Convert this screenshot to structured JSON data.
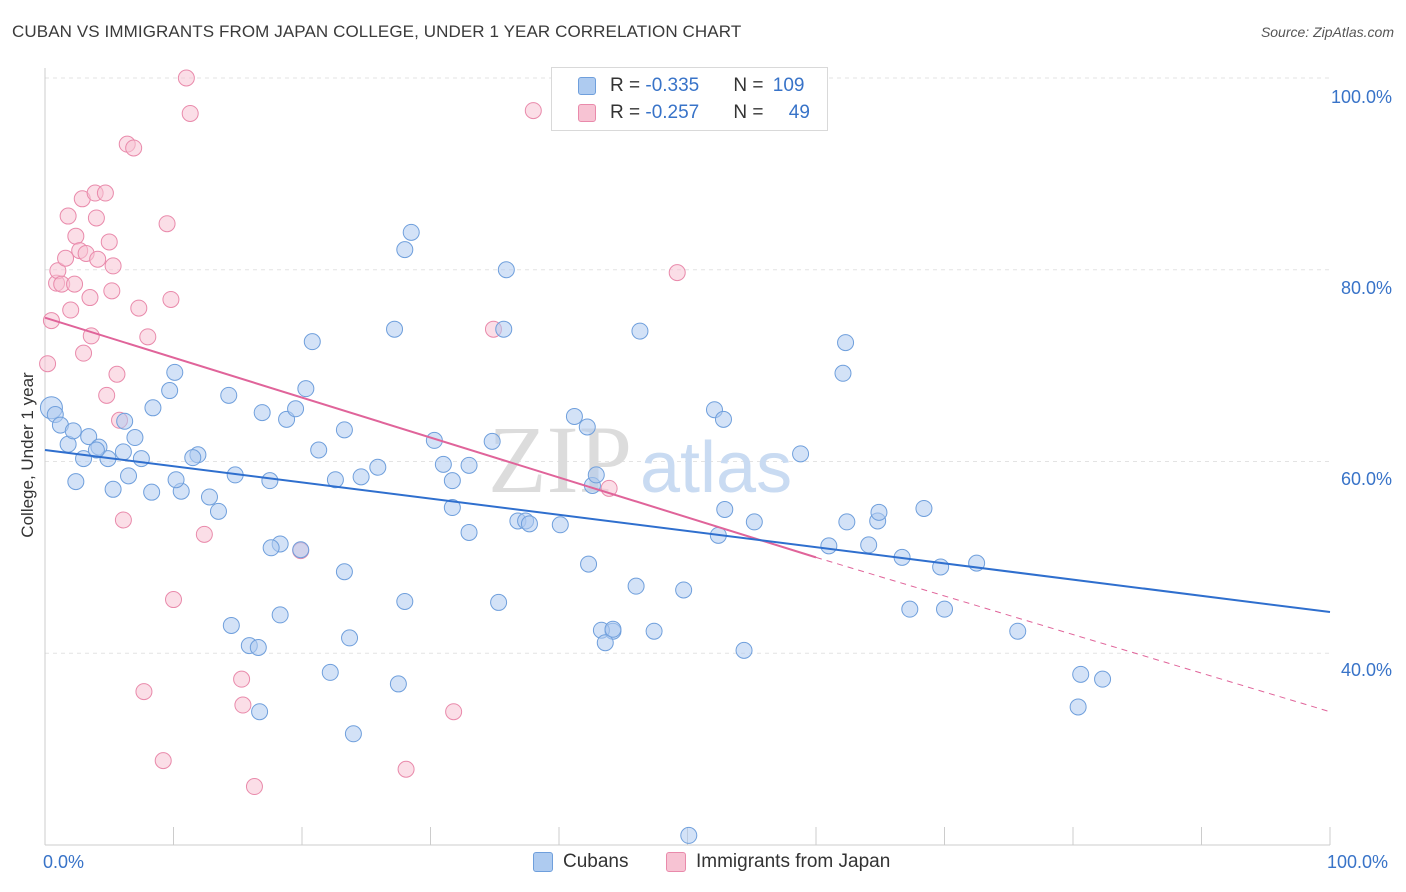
{
  "title": "CUBAN VS IMMIGRANTS FROM JAPAN COLLEGE, UNDER 1 YEAR CORRELATION CHART",
  "source": "Source: ZipAtlas.com",
  "watermark": {
    "zip": "ZIP",
    "atlas": "atlas"
  },
  "legend": {
    "rows": [
      {
        "r_label": "R = ",
        "r_value": "-0.335",
        "n_label": "N = ",
        "n_value": "109"
      },
      {
        "r_label": "R = ",
        "r_value": "-0.257",
        "n_label": "N = ",
        "n_value": "49"
      }
    ]
  },
  "bottom_legend": {
    "cubans": "Cubans",
    "japan": "Immigrants from Japan"
  },
  "axes": {
    "ylabel": "College, Under 1 year",
    "x_ticks": [
      "0.0%",
      "100.0%"
    ],
    "y_ticks": [
      "100.0%",
      "80.0%",
      "60.0%",
      "40.0%"
    ]
  },
  "colors": {
    "cubans_fill": "#aecbf0",
    "cubans_stroke": "#6f9fdc",
    "cubans_line": "#2f6fce",
    "japan_fill": "#f7c3d3",
    "japan_stroke": "#e98aab",
    "japan_line": "#e0649a",
    "tick_text": "#3873c8",
    "grid": "#e3e3e3"
  },
  "chart_data": {
    "type": "scatter",
    "title": "CUBAN VS IMMIGRANTS FROM JAPAN COLLEGE, UNDER 1 YEAR CORRELATION CHART",
    "xlabel": "",
    "ylabel": "College, Under 1 year",
    "xlim": [
      0,
      100
    ],
    "ylim": [
      20,
      100
    ],
    "grid": true,
    "legend": "top-center",
    "series": [
      {
        "name": "Cubans",
        "color": "#aecbf0",
        "trend": {
          "x": [
            0,
            100
          ],
          "y": [
            61.2,
            44.3
          ]
        },
        "points": [
          [
            0.5,
            65.6
          ],
          [
            0.8,
            64.9
          ],
          [
            1.2,
            63.8
          ],
          [
            1.8,
            61.8
          ],
          [
            2.2,
            63.2
          ],
          [
            3.0,
            60.3
          ],
          [
            3.4,
            62.6
          ],
          [
            4.2,
            61.5
          ],
          [
            4.9,
            60.3
          ],
          [
            2.4,
            57.9
          ],
          [
            4.0,
            61.2
          ],
          [
            6.1,
            61.0
          ],
          [
            6.2,
            64.2
          ],
          [
            7.0,
            62.5
          ],
          [
            6.5,
            58.5
          ],
          [
            8.4,
            65.6
          ],
          [
            7.5,
            60.3
          ],
          [
            9.7,
            67.4
          ],
          [
            10.1,
            69.3
          ],
          [
            11.9,
            60.7
          ],
          [
            11.5,
            60.4
          ],
          [
            12.8,
            56.3
          ],
          [
            14.8,
            58.6
          ],
          [
            10.6,
            56.9
          ],
          [
            14.3,
            66.9
          ],
          [
            13.5,
            54.8
          ],
          [
            5.3,
            57.1
          ],
          [
            8.3,
            56.8
          ],
          [
            10.2,
            58.1
          ],
          [
            17.5,
            58.0
          ],
          [
            16.9,
            65.1
          ],
          [
            18.8,
            64.4
          ],
          [
            19.5,
            65.5
          ],
          [
            20.3,
            67.6
          ],
          [
            21.3,
            61.2
          ],
          [
            23.3,
            63.3
          ],
          [
            22.6,
            58.1
          ],
          [
            23.3,
            48.5
          ],
          [
            24.6,
            58.4
          ],
          [
            25.9,
            59.4
          ],
          [
            27.2,
            73.8
          ],
          [
            28.0,
            82.1
          ],
          [
            28.5,
            83.9
          ],
          [
            27.5,
            36.8
          ],
          [
            18.3,
            51.4
          ],
          [
            19.9,
            50.8
          ],
          [
            17.6,
            51.0
          ],
          [
            18.3,
            44.0
          ],
          [
            14.5,
            42.9
          ],
          [
            15.9,
            40.8
          ],
          [
            16.6,
            40.6
          ],
          [
            16.7,
            33.9
          ],
          [
            22.2,
            38.0
          ],
          [
            23.7,
            41.6
          ],
          [
            24.0,
            31.6
          ],
          [
            28.0,
            45.4
          ],
          [
            31.0,
            59.7
          ],
          [
            30.3,
            62.2
          ],
          [
            31.7,
            55.2
          ],
          [
            31.7,
            58.0
          ],
          [
            33.0,
            59.6
          ],
          [
            33.0,
            52.6
          ],
          [
            34.8,
            62.1
          ],
          [
            35.3,
            45.3
          ],
          [
            36.8,
            53.8
          ],
          [
            37.4,
            53.8
          ],
          [
            37.7,
            53.5
          ],
          [
            35.7,
            73.8
          ],
          [
            35.9,
            80.0
          ],
          [
            20.8,
            72.5
          ],
          [
            40.1,
            53.4
          ],
          [
            41.2,
            64.7
          ],
          [
            42.2,
            63.6
          ],
          [
            42.6,
            57.5
          ],
          [
            42.9,
            58.6
          ],
          [
            44.2,
            42.3
          ],
          [
            43.3,
            42.4
          ],
          [
            43.6,
            41.1
          ],
          [
            44.2,
            42.5
          ],
          [
            42.3,
            49.3
          ],
          [
            46.0,
            47.0
          ],
          [
            47.4,
            42.3
          ],
          [
            46.3,
            73.6
          ],
          [
            49.7,
            46.6
          ],
          [
            52.4,
            52.3
          ],
          [
            52.9,
            55.0
          ],
          [
            52.1,
            65.4
          ],
          [
            52.8,
            64.4
          ],
          [
            55.2,
            53.7
          ],
          [
            54.4,
            40.3
          ],
          [
            58.8,
            60.8
          ],
          [
            61.0,
            51.2
          ],
          [
            62.3,
            72.4
          ],
          [
            62.1,
            69.2
          ],
          [
            62.4,
            53.7
          ],
          [
            64.8,
            53.8
          ],
          [
            64.9,
            54.7
          ],
          [
            64.1,
            51.3
          ],
          [
            66.7,
            50.0
          ],
          [
            68.4,
            55.1
          ],
          [
            67.3,
            44.6
          ],
          [
            69.7,
            49.0
          ],
          [
            70.0,
            44.6
          ],
          [
            72.5,
            49.4
          ],
          [
            75.7,
            42.3
          ],
          [
            80.6,
            37.8
          ],
          [
            80.4,
            34.4
          ],
          [
            82.3,
            37.3
          ],
          [
            50.1,
            21.0
          ]
        ]
      },
      {
        "name": "Immigrants from Japan",
        "color": "#f7c3d3",
        "trend": {
          "x": [
            0,
            60
          ],
          "y": [
            75.0,
            50.0
          ]
        },
        "trend_dashed": {
          "x": [
            60,
            100
          ],
          "y": [
            50.0,
            33.9
          ]
        },
        "points": [
          [
            0.2,
            70.2
          ],
          [
            0.5,
            74.7
          ],
          [
            0.9,
            78.6
          ],
          [
            1.0,
            79.9
          ],
          [
            1.3,
            78.5
          ],
          [
            1.6,
            81.2
          ],
          [
            1.8,
            85.6
          ],
          [
            2.0,
            75.8
          ],
          [
            2.3,
            78.5
          ],
          [
            2.4,
            83.5
          ],
          [
            2.7,
            82.0
          ],
          [
            2.9,
            87.4
          ],
          [
            3.0,
            71.3
          ],
          [
            3.2,
            81.7
          ],
          [
            3.5,
            77.1
          ],
          [
            3.6,
            73.1
          ],
          [
            3.9,
            88.0
          ],
          [
            4.0,
            85.4
          ],
          [
            4.1,
            81.1
          ],
          [
            4.7,
            88.0
          ],
          [
            5.0,
            82.9
          ],
          [
            5.2,
            77.8
          ],
          [
            5.3,
            80.4
          ],
          [
            5.6,
            69.1
          ],
          [
            5.8,
            64.3
          ],
          [
            6.1,
            53.9
          ],
          [
            6.4,
            93.1
          ],
          [
            6.9,
            92.7
          ],
          [
            7.3,
            76.0
          ],
          [
            7.7,
            36.0
          ],
          [
            9.2,
            28.8
          ],
          [
            9.5,
            84.8
          ],
          [
            9.8,
            76.9
          ],
          [
            10.0,
            45.6
          ],
          [
            11.0,
            100.0
          ],
          [
            11.3,
            96.3
          ],
          [
            12.4,
            52.4
          ],
          [
            15.3,
            37.3
          ],
          [
            15.4,
            34.6
          ],
          [
            16.3,
            26.1
          ],
          [
            19.9,
            50.7
          ],
          [
            28.1,
            27.9
          ],
          [
            31.8,
            33.9
          ],
          [
            34.9,
            73.8
          ],
          [
            38.0,
            96.6
          ],
          [
            43.9,
            57.2
          ],
          [
            49.2,
            79.7
          ],
          [
            4.8,
            66.9
          ],
          [
            8.0,
            73.0
          ]
        ]
      }
    ]
  }
}
